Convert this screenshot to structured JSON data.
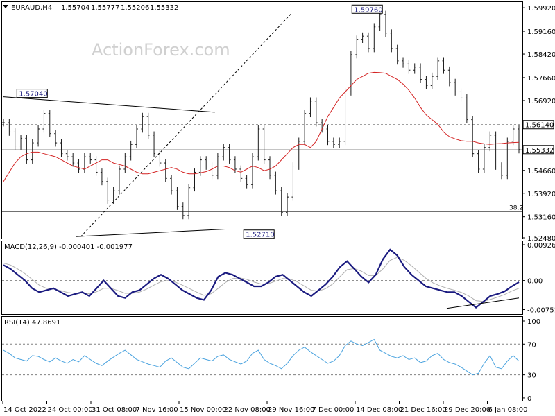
{
  "colors": {
    "background": "#ffffff",
    "candles": "#1a1a1a",
    "ma": "#d42424",
    "macd": "#1b1b80",
    "signal": "#b0b0b0",
    "rsi": "#4aa3df",
    "trendline": "#000000",
    "grid_dotted": "#808080",
    "price_box_border": "#000000"
  },
  "chart_data": [
    {
      "type": "candlestick",
      "title": "EURAUD,H4",
      "ohlc_header": [
        "1.55704",
        "1.55777",
        "1.55206",
        "1.55332"
      ],
      "watermark": "ActionForex.com",
      "ylim": [
        1.5248,
        1.6008
      ],
      "y_ticks": [
        "1.59920",
        "1.59160",
        "1.58420",
        "1.57660",
        "1.56920",
        "1.56140",
        "1.55332",
        "1.54660",
        "1.53920",
        "1.53160",
        "1.52480"
      ],
      "x_ticks": [
        "14 Oct 2022",
        "24 Oct 00:00",
        "31 Oct 08:00",
        "7 Nov 16:00",
        "15 Nov 00:00",
        "22 Nov 08:00",
        "29 Nov 16:00",
        "7 Dec 00:00",
        "14 Dec 08:00",
        "21 Dec 16:00",
        "29 Dec 20:00",
        "6 Jan 08:00"
      ],
      "current_price": "1.55332",
      "level_line": {
        "value": 1.5614,
        "label": "1.56140"
      },
      "fib_line": {
        "value": 1.5332,
        "label": "38.2"
      },
      "annotations": [
        {
          "label": "1.57040",
          "value": 1.5704
        },
        {
          "label": "1.59760",
          "value": 1.5976
        },
        {
          "label": "1.52710",
          "value": 1.5271
        }
      ],
      "trendlines": [
        {
          "from": [
            0.0,
            1.5704
          ],
          "to": [
            0.41,
            1.5654
          ]
        },
        {
          "from": [
            0.14,
            1.5252
          ],
          "to": [
            0.43,
            1.5276
          ]
        },
        {
          "from": [
            0.15,
            1.5252
          ],
          "to": [
            0.56,
            1.5976
          ],
          "dashed": true
        }
      ],
      "close": [
        1.562,
        1.559,
        1.5545,
        1.557,
        1.55,
        1.5555,
        1.56,
        1.565,
        1.5585,
        1.5555,
        1.552,
        1.551,
        1.549,
        1.547,
        1.551,
        1.55,
        1.546,
        1.543,
        1.537,
        1.54,
        1.547,
        1.551,
        1.555,
        1.56,
        1.564,
        1.558,
        1.552,
        1.549,
        1.544,
        1.54,
        1.535,
        1.532,
        1.541,
        1.546,
        1.55,
        1.548,
        1.545,
        1.551,
        1.554,
        1.55,
        1.547,
        1.544,
        1.542,
        1.551,
        1.56,
        1.55,
        1.545,
        1.54,
        1.533,
        1.538,
        1.548,
        1.556,
        1.565,
        1.569,
        1.562,
        1.56,
        1.556,
        1.555,
        1.556,
        1.572,
        1.584,
        1.589,
        1.59,
        1.586,
        1.593,
        1.597,
        1.591,
        1.586,
        1.582,
        1.581,
        1.579,
        1.58,
        1.576,
        1.574,
        1.577,
        1.582,
        1.579,
        1.575,
        1.572,
        1.57,
        1.563,
        1.552,
        1.547,
        1.554,
        1.558,
        1.548,
        1.545,
        1.556,
        1.56,
        1.5533
      ],
      "ma": [
        1.543,
        1.546,
        1.549,
        1.551,
        1.552,
        1.5525,
        1.5525,
        1.552,
        1.5515,
        1.551,
        1.55,
        1.549,
        1.548,
        1.5475,
        1.547,
        1.548,
        1.549,
        1.55,
        1.55,
        1.549,
        1.5485,
        1.548,
        1.547,
        1.546,
        1.5455,
        1.5455,
        1.546,
        1.5465,
        1.547,
        1.5475,
        1.547,
        1.546,
        1.5455,
        1.5455,
        1.5458,
        1.5462,
        1.547,
        1.548,
        1.548,
        1.5475,
        1.5465,
        1.546,
        1.547,
        1.548,
        1.5475,
        1.5465,
        1.547,
        1.548,
        1.55,
        1.552,
        1.554,
        1.555,
        1.555,
        1.554,
        1.556,
        1.56,
        1.564,
        1.567,
        1.57,
        1.572,
        1.574,
        1.576,
        1.577,
        1.578,
        1.5783,
        1.5782,
        1.578,
        1.577,
        1.576,
        1.5745,
        1.5725,
        1.57,
        1.567,
        1.5645,
        1.563,
        1.5615,
        1.559,
        1.5575,
        1.5568,
        1.5562,
        1.556,
        1.556,
        1.5555,
        1.5552,
        1.555,
        1.5552,
        1.5553,
        1.5555,
        1.5556,
        1.5557
      ]
    },
    {
      "type": "line",
      "title": "MACD(12,26,9) -0.000401 -0.001977",
      "ylim": [
        -0.0085,
        0.0098
      ],
      "y_ticks": [
        "0.009263",
        "0.00",
        "-0.007517"
      ],
      "series": [
        {
          "name": "MACD",
          "values": [
            0.004,
            0.003,
            0.0015,
            0.0,
            -0.002,
            -0.003,
            -0.0025,
            -0.002,
            -0.003,
            -0.004,
            -0.0035,
            -0.003,
            -0.004,
            -0.002,
            0.0,
            -0.002,
            -0.004,
            -0.0045,
            -0.003,
            -0.0025,
            -0.001,
            0.0005,
            0.0015,
            0.0005,
            -0.001,
            -0.0025,
            -0.0035,
            -0.0045,
            -0.005,
            -0.0025,
            0.001,
            0.002,
            0.0015,
            0.0005,
            -0.0005,
            -0.0015,
            -0.0015,
            -0.0005,
            0.001,
            0.0015,
            0.0,
            -0.0015,
            -0.003,
            -0.004,
            -0.0025,
            -0.001,
            0.001,
            0.0035,
            0.005,
            0.003,
            0.001,
            -0.0005,
            0.0015,
            0.0055,
            0.008,
            0.0065,
            0.0035,
            0.0015,
            0.0,
            -0.0015,
            -0.002,
            -0.0025,
            -0.003,
            -0.003,
            -0.004,
            -0.0055,
            -0.007,
            -0.0055,
            -0.004,
            -0.0035,
            -0.0028,
            -0.0015,
            -0.0004
          ]
        },
        {
          "name": "Signal",
          "values": [
            0.0045,
            0.004,
            0.003,
            0.0018,
            0.0003,
            -0.0012,
            -0.002,
            -0.0022,
            -0.0026,
            -0.0031,
            -0.0033,
            -0.0032,
            -0.0034,
            -0.0029,
            -0.002,
            -0.002,
            -0.0026,
            -0.0033,
            -0.0033,
            -0.003,
            -0.0022,
            -0.0012,
            -0.0003,
            0.0,
            -0.0004,
            -0.0012,
            -0.0021,
            -0.003,
            -0.0038,
            -0.0034,
            -0.002,
            -0.0005,
            0.0005,
            0.0007,
            0.0003,
            -0.0004,
            -0.0009,
            -0.0008,
            -0.0002,
            0.0005,
            0.0004,
            -0.0003,
            -0.0014,
            -0.0025,
            -0.0027,
            -0.0021,
            -0.0009,
            0.001,
            0.0028,
            0.0031,
            0.0024,
            0.0013,
            0.0013,
            0.003,
            0.0052,
            0.006,
            0.0052,
            0.0038,
            0.0022,
            0.0006,
            -0.0006,
            -0.0014,
            -0.002,
            -0.0025,
            -0.0031,
            -0.004,
            -0.0052,
            -0.0054,
            -0.0049,
            -0.0043,
            -0.0036,
            -0.0027,
            -0.002
          ]
        }
      ],
      "support_line": {
        "from": [
          0.86,
          -0.0072
        ],
        "to": [
          1.0,
          -0.0045
        ]
      }
    },
    {
      "type": "line",
      "title": "RSI(14) 47.8691",
      "ylim": [
        0,
        100
      ],
      "y_ticks": [
        "100",
        "70",
        "30",
        "0"
      ],
      "levels": [
        70,
        30
      ],
      "series": [
        {
          "name": "RSI",
          "values": [
            62,
            58,
            52,
            50,
            48,
            55,
            54,
            50,
            47,
            52,
            48,
            45,
            50,
            47,
            55,
            50,
            45,
            42,
            48,
            53,
            58,
            62,
            56,
            50,
            47,
            44,
            42,
            40,
            48,
            52,
            46,
            40,
            38,
            45,
            52,
            50,
            48,
            54,
            56,
            50,
            47,
            44,
            48,
            58,
            62,
            50,
            45,
            42,
            38,
            45,
            55,
            62,
            66,
            60,
            55,
            50,
            45,
            48,
            55,
            68,
            74,
            70,
            68,
            72,
            76,
            62,
            58,
            54,
            52,
            55,
            50,
            52,
            46,
            48,
            55,
            58,
            50,
            46,
            44,
            40,
            35,
            30,
            32,
            45,
            55,
            40,
            38,
            48,
            55,
            48
          ]
        }
      ]
    }
  ]
}
